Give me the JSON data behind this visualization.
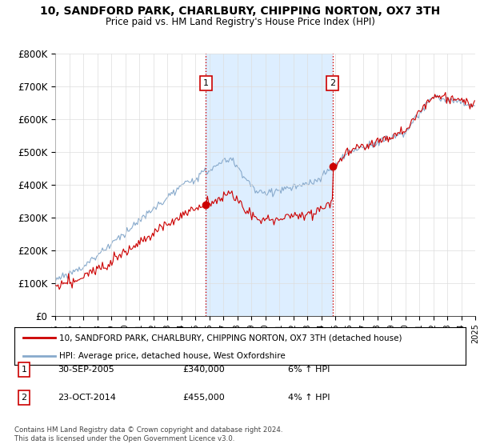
{
  "title": "10, SANDFORD PARK, CHARLBURY, CHIPPING NORTON, OX7 3TH",
  "subtitle": "Price paid vs. HM Land Registry's House Price Index (HPI)",
  "ylabel_ticks": [
    "£0",
    "£100K",
    "£200K",
    "£300K",
    "£400K",
    "£500K",
    "£600K",
    "£700K",
    "£800K"
  ],
  "ytick_values": [
    0,
    100000,
    200000,
    300000,
    400000,
    500000,
    600000,
    700000,
    800000
  ],
  "ylim": [
    0,
    800000
  ],
  "legend_line1": "10, SANDFORD PARK, CHARLBURY, CHIPPING NORTON, OX7 3TH (detached house)",
  "legend_line2": "HPI: Average price, detached house, West Oxfordshire",
  "transaction1_date": "30-SEP-2005",
  "transaction1_price": "£340,000",
  "transaction1_hpi": "6% ↑ HPI",
  "transaction2_date": "23-OCT-2014",
  "transaction2_price": "£455,000",
  "transaction2_hpi": "4% ↑ HPI",
  "footer": "Contains HM Land Registry data © Crown copyright and database right 2024.\nThis data is licensed under the Open Government Licence v3.0.",
  "line_color_property": "#cc0000",
  "line_color_hpi": "#88aacc",
  "shade_color": "#ddeeff",
  "vline_color": "#cc0000",
  "marker1_x": 2005.75,
  "marker1_y": 340000,
  "marker2_x": 2014.8,
  "marker2_y": 455000,
  "xmin": 1995,
  "xmax": 2025,
  "background_color": "#ffffff",
  "grid_color": "#dddddd"
}
